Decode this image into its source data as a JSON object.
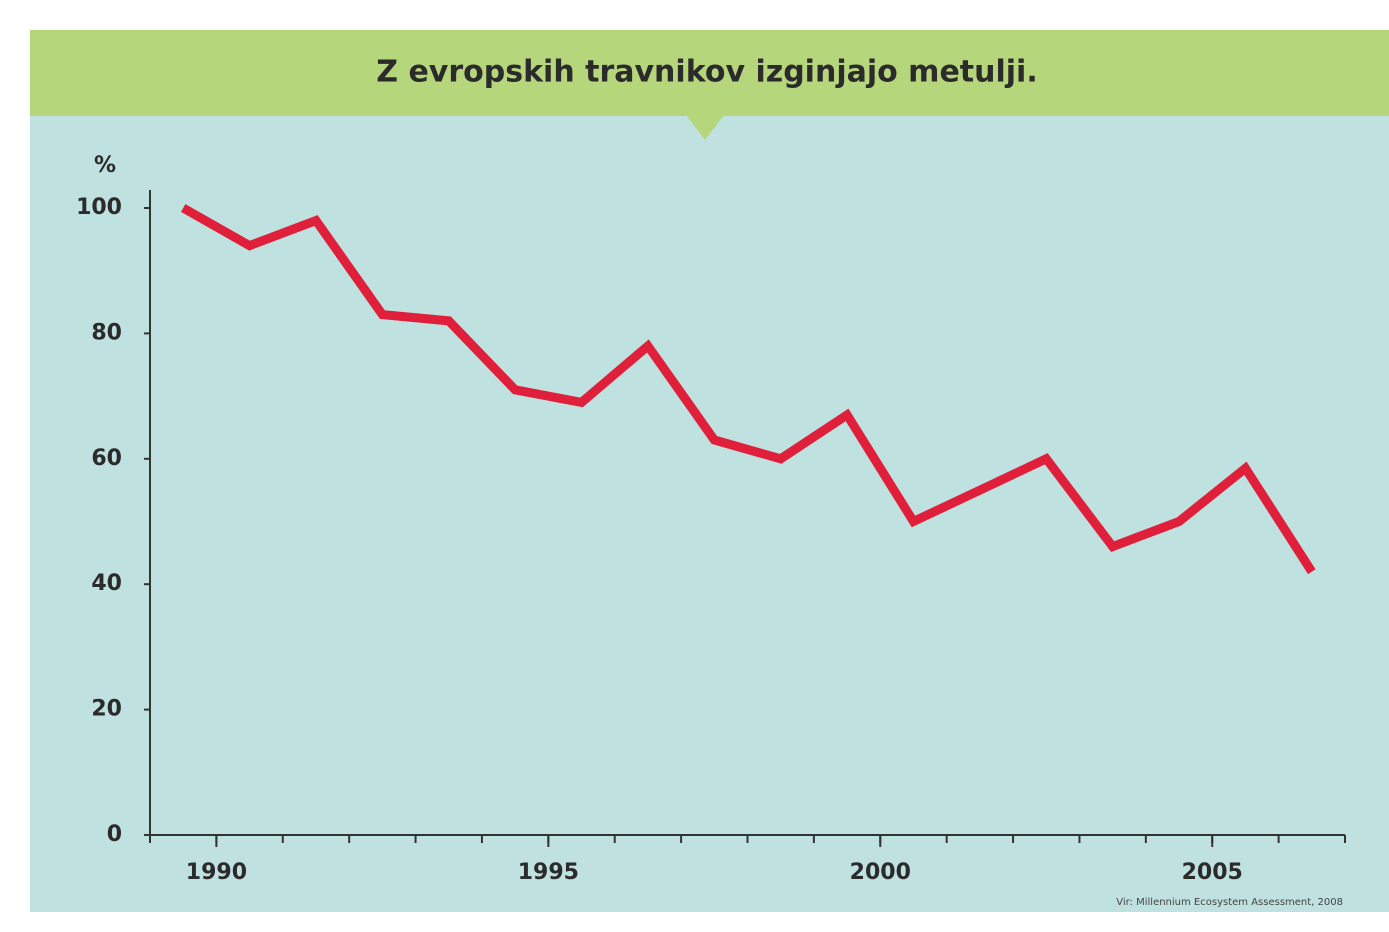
{
  "chart_data": {
    "type": "line",
    "title": "Z evropskih travnikov izginjajo metulji.",
    "y_label": "%",
    "source": "Vir: Millennium Ecosystem Assessment, 2008",
    "x": [
      1989.5,
      1990.5,
      1991.5,
      1992.5,
      1993.5,
      1994.5,
      1995.5,
      1996.5,
      1997.5,
      1998.5,
      1999.5,
      2000.5,
      2001.5,
      2002.5,
      2003.5,
      2004.5,
      2005.5,
      2006.5
    ],
    "series": [
      {
        "color": "#e0203a",
        "values": [
          100,
          94,
          98,
          83,
          82,
          71,
          69,
          78,
          63,
          60,
          67,
          50,
          55,
          60,
          46,
          50,
          58.5,
          42
        ]
      }
    ],
    "xlim": [
      1989,
      2007
    ],
    "xticks": [
      1990,
      1995,
      2000,
      2005
    ],
    "xminorticks": [
      1989,
      1990,
      1991,
      1992,
      1993,
      1994,
      1995,
      1996,
      1997,
      1998,
      1999,
      2000,
      2001,
      2002,
      2003,
      2004,
      2005,
      2006,
      2007
    ],
    "ylim": [
      0,
      100
    ],
    "yticks": [
      0,
      20,
      40,
      60,
      80,
      100
    ],
    "grid": false
  }
}
